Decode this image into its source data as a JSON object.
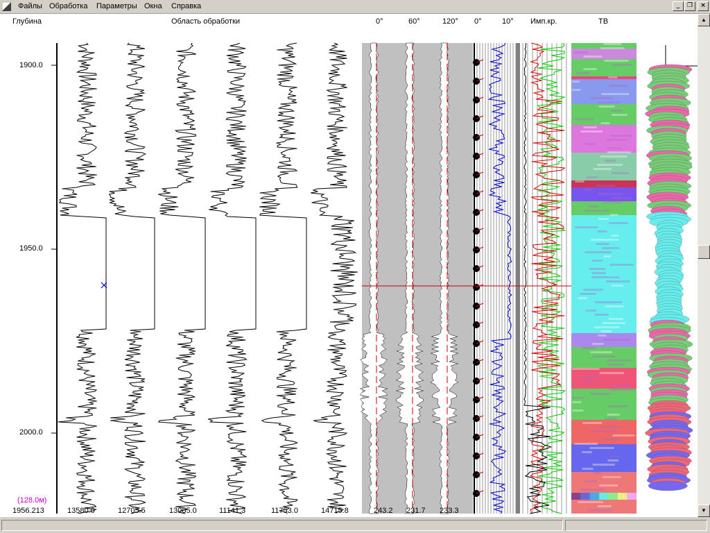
{
  "menu": {
    "items": [
      "Файлы",
      "Обработка",
      "Параметры",
      "Окна",
      "Справка"
    ]
  },
  "window_buttons": {
    "minimize": "_",
    "restore": "❐",
    "close": "×"
  },
  "headers": {
    "depth": "Глубина",
    "processing_area": "Область обработки",
    "angle_0": "0°",
    "angle_60": "60°",
    "angle_120": "120°",
    "dip_0": "0°",
    "dip_10": "10°",
    "imp": "Имп.кр.",
    "tv": "ТВ"
  },
  "depth_scale": {
    "ticks": [
      "1900.0",
      "1950.0",
      "2000.0"
    ],
    "tick_values": [
      1900,
      1950,
      2000
    ],
    "range": [
      1890.3,
      2017.5
    ]
  },
  "footer": {
    "interval": "(128.0м)",
    "cursor_depth": "1956.213",
    "values": [
      "13580.0",
      "12705.5",
      "13085.0",
      "11141.3",
      "11753.0",
      "14715.8",
      "243.2",
      "231.7",
      "233.3"
    ]
  },
  "colors": {
    "window_bg": "#d4d0c8",
    "cursor_line": "#cc0000",
    "interval_text": "#cc00cc",
    "blue_trace": "#0000cc",
    "green_trace": "#00cc00",
    "red_trace": "#dd0000",
    "gray_band": "#c0c0c0"
  },
  "scrollbar": {
    "up": "▲",
    "down": "▼"
  }
}
